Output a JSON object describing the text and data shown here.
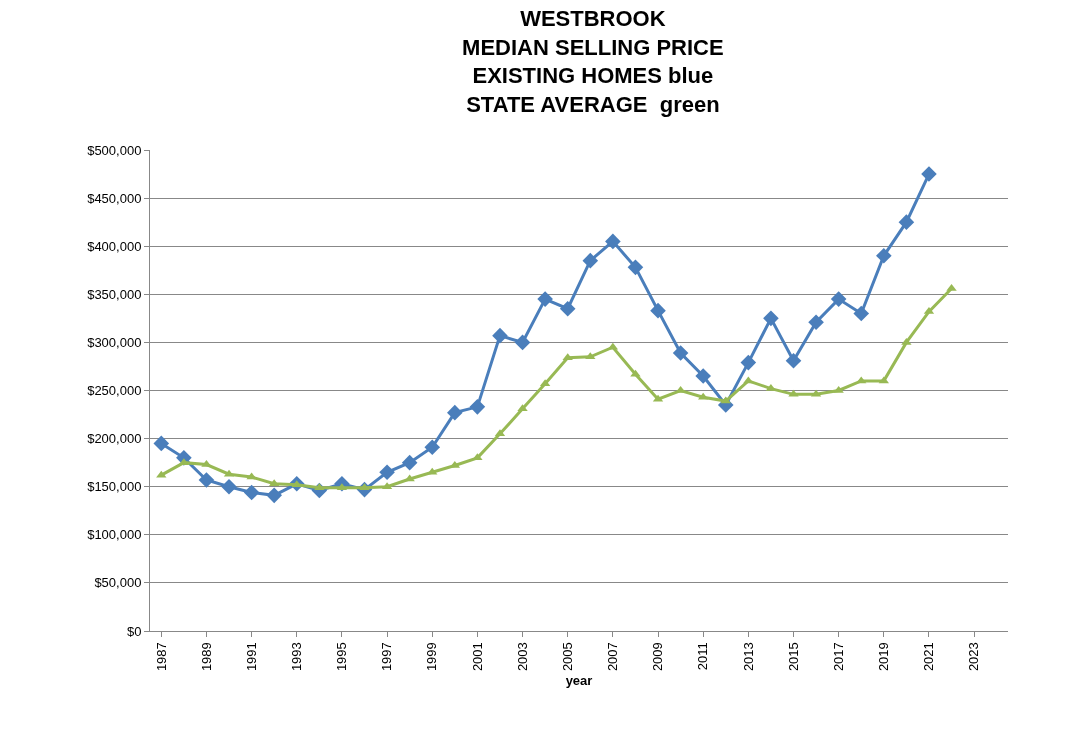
{
  "chart_data": {
    "type": "line",
    "title": "WESTBROOK\nMEDIAN SELLING PRICE\nEXISTING HOMES blue\nSTATE AVERAGE  green",
    "xlabel": "year",
    "x": [
      1987,
      1988,
      1989,
      1990,
      1991,
      1992,
      1993,
      1994,
      1995,
      1996,
      1997,
      1998,
      1999,
      2000,
      2001,
      2002,
      2003,
      2004,
      2005,
      2006,
      2007,
      2008,
      2009,
      2010,
      2011,
      2012,
      2013,
      2014,
      2015,
      2016,
      2017,
      2018,
      2019,
      2020,
      2021,
      2022
    ],
    "series": [
      {
        "color": "#4a7ebb",
        "marker": "diamond",
        "values": [
          195000,
          180000,
          157000,
          150000,
          144000,
          141000,
          153000,
          146000,
          153000,
          147000,
          165000,
          175000,
          191000,
          227000,
          233000,
          307000,
          300000,
          345000,
          335000,
          385000,
          405000,
          378000,
          333000,
          289000,
          265000,
          235000,
          279000,
          325000,
          281000,
          321000,
          345000,
          330000,
          390000,
          425000,
          475000,
          null
        ]
      },
      {
        "color": "#98b954",
        "marker": "triangle",
        "values": [
          162000,
          175000,
          173000,
          163000,
          160000,
          153000,
          152000,
          149000,
          149000,
          149000,
          150000,
          158000,
          165000,
          172000,
          180000,
          205000,
          231000,
          257000,
          284000,
          285000,
          295000,
          267000,
          241000,
          250000,
          243000,
          239000,
          260000,
          252000,
          246000,
          246000,
          250000,
          260000,
          260000,
          300000,
          332000,
          356000
        ]
      }
    ],
    "xlim": [
      1986.5,
      2024.5
    ],
    "xticks": [
      1987,
      1989,
      1991,
      1993,
      1995,
      1997,
      1999,
      2001,
      2003,
      2005,
      2007,
      2009,
      2011,
      2013,
      2015,
      2017,
      2019,
      2021,
      2023
    ],
    "ylim": [
      0,
      500000
    ],
    "yticks": [
      {
        "value": 0,
        "label": "$0"
      },
      {
        "value": 50000,
        "label": "$50,000"
      },
      {
        "value": 100000,
        "label": "$100,000"
      },
      {
        "value": 150000,
        "label": "$150,000"
      },
      {
        "value": 200000,
        "label": "$200,000"
      },
      {
        "value": 250000,
        "label": "$250,000"
      },
      {
        "value": 300000,
        "label": "$300,000"
      },
      {
        "value": 350000,
        "label": "$350,000"
      },
      {
        "value": 400000,
        "label": "$400,000"
      },
      {
        "value": 450000,
        "label": "$450,000"
      },
      {
        "value": 500000,
        "label": "$500,000"
      }
    ],
    "grid": "y",
    "line_style": "solid"
  }
}
